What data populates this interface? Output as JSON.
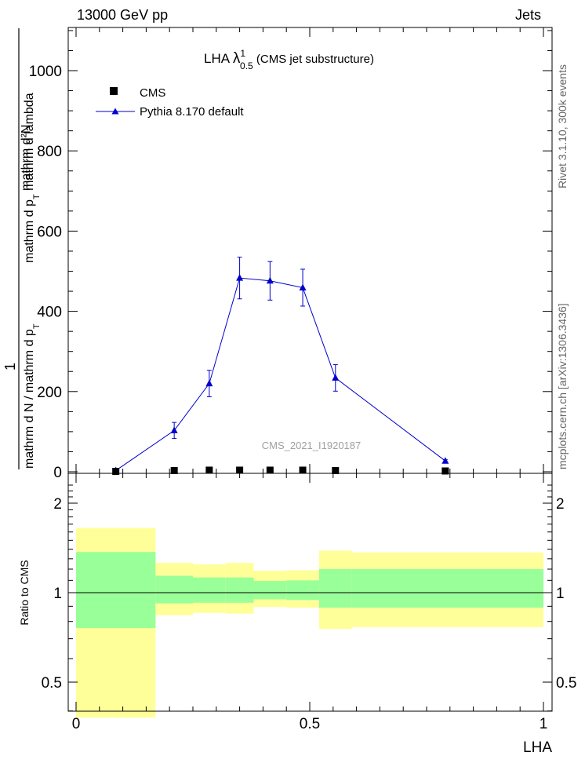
{
  "header": {
    "left": "13000 GeV pp",
    "right": "Jets"
  },
  "side": {
    "rivet": "Rivet 3.1.10,  300k events",
    "mcplots": "mcplots.cern.ch [arXiv:1306.3436]"
  },
  "main_plot": {
    "title_prefix": "LHA ",
    "title_lambda": "λ",
    "title_sup": "1",
    "title_sub": "0.5",
    "title_suffix": " (CMS jet substructure)",
    "ylabel_top": "mathrm d²N",
    "ylabel_top_sub": "mathrm d p",
    "ylabel_top_subT": "T",
    "ylabel_top_tail": " mathrm d lambda",
    "ylabel_num": "1",
    "ylabel_den": "mathrm d N / mathrm d p",
    "ylabel_den_T": "T",
    "analysis_label": "CMS_2021_I1920187",
    "legend": {
      "cms": "CMS",
      "pythia": "Pythia 8.170 default"
    }
  },
  "ratio_plot": {
    "ylabel": "Ratio to CMS",
    "xlabel": "LHA"
  },
  "colors": {
    "mc_line": "#0000cc",
    "band_inner": "#99ff99",
    "band_outer": "#ffff99"
  },
  "chart_data": [
    {
      "type": "line",
      "title": "LHA λ^1_0.5 (CMS jet substructure)",
      "xlabel": "",
      "ylabel": "1/(mathrm d N / mathrm d p_T) mathrm d²N/(mathrm d p_T mathrm d lambda)",
      "xlim": [
        0,
        1
      ],
      "ylim": [
        0,
        1100
      ],
      "yticks": [
        0,
        200,
        400,
        600,
        800,
        1000
      ],
      "legend_position": "top-left",
      "series": [
        {
          "name": "CMS",
          "marker": "square",
          "x": [
            0.085,
            0.21,
            0.285,
            0.35,
            0.415,
            0.485,
            0.555,
            0.79
          ],
          "y": [
            1,
            3,
            4,
            4,
            4,
            4,
            3,
            2
          ]
        },
        {
          "name": "Pythia 8.170 default",
          "marker": "triangle",
          "x": [
            0.085,
            0.21,
            0.285,
            0.35,
            0.415,
            0.485,
            0.555,
            0.79
          ],
          "y": [
            3,
            103,
            220,
            483,
            476,
            459,
            234,
            27
          ],
          "yerr": [
            1,
            20,
            33,
            52,
            48,
            46,
            33,
            3
          ]
        }
      ]
    },
    {
      "type": "area",
      "title": "",
      "xlabel": "LHA",
      "ylabel": "Ratio to CMS",
      "xlim": [
        0,
        1
      ],
      "ylim": [
        0.4,
        2.3
      ],
      "xticks": [
        0,
        0.5,
        1
      ],
      "yticks": [
        0.5,
        1,
        2
      ],
      "bins": [
        {
          "x0": 0.0,
          "x1": 0.17,
          "inner": [
            0.76,
            1.37
          ],
          "outer": [
            0.38,
            1.65
          ]
        },
        {
          "x0": 0.17,
          "x1": 0.25,
          "inner": [
            0.92,
            1.14
          ],
          "outer": [
            0.84,
            1.26
          ]
        },
        {
          "x0": 0.25,
          "x1": 0.32,
          "inner": [
            0.925,
            1.125
          ],
          "outer": [
            0.855,
            1.245
          ]
        },
        {
          "x0": 0.32,
          "x1": 0.38,
          "inner": [
            0.925,
            1.125
          ],
          "outer": [
            0.85,
            1.26
          ]
        },
        {
          "x0": 0.38,
          "x1": 0.45,
          "inner": [
            0.95,
            1.095
          ],
          "outer": [
            0.895,
            1.185
          ]
        },
        {
          "x0": 0.45,
          "x1": 0.52,
          "inner": [
            0.945,
            1.1
          ],
          "outer": [
            0.89,
            1.19
          ]
        },
        {
          "x0": 0.52,
          "x1": 0.59,
          "inner": [
            0.89,
            1.2
          ],
          "outer": [
            0.755,
            1.385
          ]
        },
        {
          "x0": 0.59,
          "x1": 1.0,
          "inner": [
            0.89,
            1.2
          ],
          "outer": [
            0.765,
            1.365
          ]
        }
      ],
      "reference_line": 1
    }
  ]
}
